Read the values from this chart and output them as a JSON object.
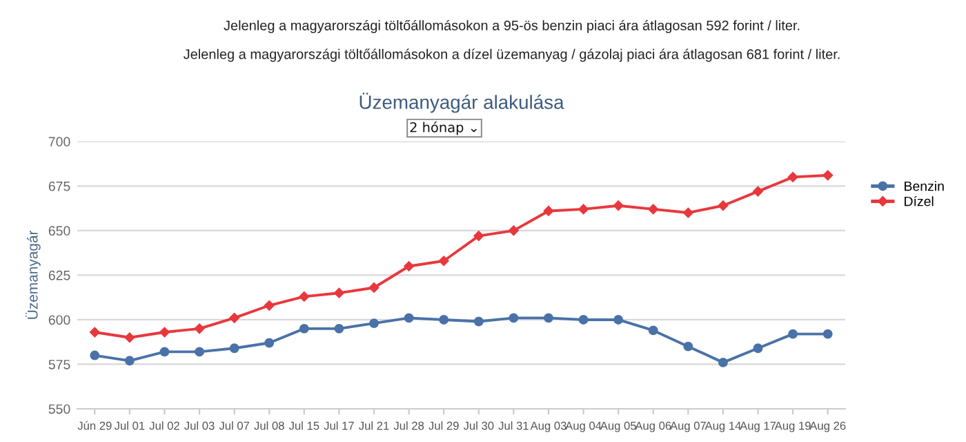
{
  "chart_data": {
    "type": "line",
    "title": "Üzemanyagár alakulása",
    "annotations": [
      "Jelenleg a magyarországi töltőállomásokon a 95-ös benzin piaci ára átlagosan 592 forint / liter.",
      "Jelenleg a magyarországi töltőállomásokon a dízel üzemanyag / gázolaj piaci ára átlagosan 681 forint / liter.",
      "2 hónap ⌄"
    ],
    "ylabel": "Üzemanyagár",
    "categories": [
      "Jún 29",
      "Jul 01",
      "Jul 02",
      "Jul 03",
      "Jul 07",
      "Jul 08",
      "Jul 15",
      "Jul 17",
      "Jul 21",
      "Jul 28",
      "Jul 29",
      "Jul 30",
      "Jul 31",
      "Aug 03",
      "Aug 04",
      "Aug 05",
      "Aug 06",
      "Aug 07",
      "Aug 14",
      "Aug 17",
      "Aug 19",
      "Aug 26"
    ],
    "series": [
      {
        "name": "Benzin",
        "color": "#4a72a8",
        "marker": "circle",
        "values": [
          580,
          577,
          582,
          582,
          584,
          587,
          595,
          595,
          598,
          601,
          600,
          599,
          601,
          601,
          600,
          600,
          594,
          585,
          576,
          584,
          592,
          592
        ]
      },
      {
        "name": "Dízel",
        "color": "#e8383d",
        "marker": "diamond",
        "values": [
          593,
          590,
          593,
          595,
          601,
          608,
          613,
          615,
          618,
          630,
          633,
          647,
          650,
          661,
          662,
          664,
          662,
          660,
          664,
          672,
          680,
          681
        ]
      }
    ],
    "ylim": [
      550,
      700
    ],
    "yticks": [
      550,
      575,
      600,
      625,
      650,
      675,
      700
    ],
    "grid": "y",
    "legend": "right",
    "line_style": "solid"
  }
}
